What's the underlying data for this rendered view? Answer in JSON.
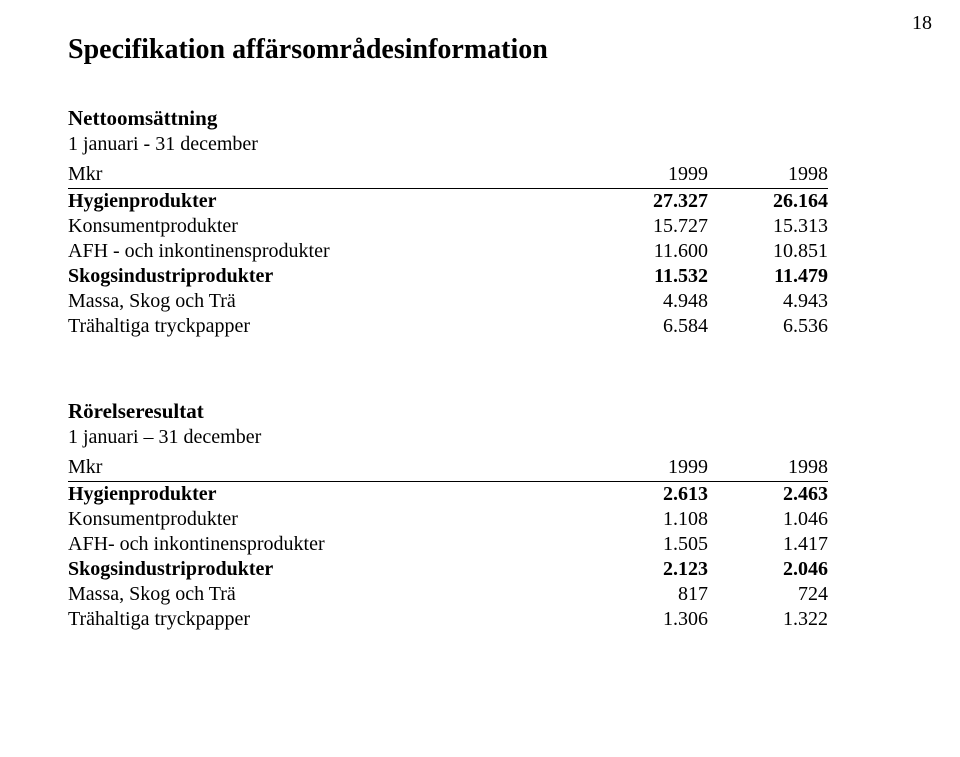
{
  "page_number": "18",
  "title": "Specifikation affärsområdesinformation",
  "table1": {
    "section": "Nettoomsättning",
    "period": "1 januari - 31 december",
    "col_label": "Mkr",
    "year1": "1999",
    "year2": "1998",
    "rows": [
      {
        "label": "Hygienprodukter",
        "v1": "27.327",
        "v2": "26.164",
        "bold": true,
        "indent": false
      },
      {
        "label": "Konsumentprodukter",
        "v1": "15.727",
        "v2": "15.313",
        "bold": false,
        "indent": true
      },
      {
        "label": "AFH - och inkontinensprodukter",
        "v1": "11.600",
        "v2": "10.851",
        "bold": false,
        "indent": true
      },
      {
        "label": "Skogsindustriprodukter",
        "v1": "11.532",
        "v2": "11.479",
        "bold": true,
        "indent": false
      },
      {
        "label": "Massa, Skog och Trä",
        "v1": "4.948",
        "v2": "4.943",
        "bold": false,
        "indent": true
      },
      {
        "label": "Trähaltiga tryckpapper",
        "v1": "6.584",
        "v2": "6.536",
        "bold": false,
        "indent": true
      }
    ]
  },
  "table2": {
    "section": "Rörelseresultat",
    "period": "1 januari – 31 december",
    "col_label": "Mkr",
    "year1": "1999",
    "year2": "1998",
    "rows": [
      {
        "label": "Hygienprodukter",
        "v1": "2.613",
        "v2": "2.463",
        "bold": true,
        "indent": false
      },
      {
        "label": "Konsumentprodukter",
        "v1": "1.108",
        "v2": "1.046",
        "bold": false,
        "indent": true
      },
      {
        "label": "AFH- och inkontinensprodukter",
        "v1": "1.505",
        "v2": "1.417",
        "bold": false,
        "indent": true
      },
      {
        "label": "Skogsindustriprodukter",
        "v1": "2.123",
        "v2": "2.046",
        "bold": true,
        "indent": false
      },
      {
        "label": "Massa, Skog och Trä",
        "v1": "817",
        "v2": "724",
        "bold": false,
        "indent": true
      },
      {
        "label": "Trähaltiga tryckpapper",
        "v1": "1.306",
        "v2": "1.322",
        "bold": false,
        "indent": true
      }
    ]
  }
}
